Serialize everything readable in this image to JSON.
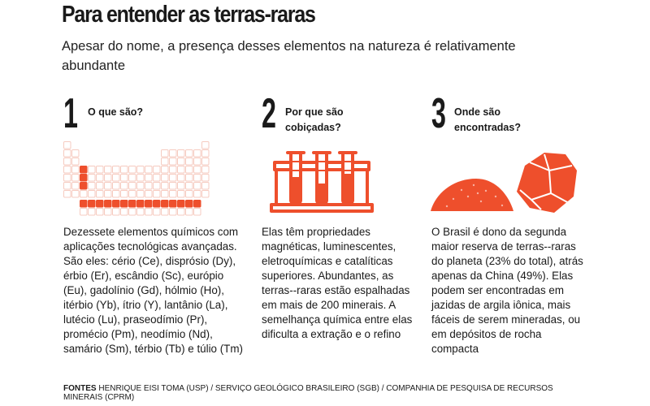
{
  "header": {
    "title": "Para entender as terras-raras",
    "subtitle": "Apesar do nome, a presença desses elementos na natureza é relativamente abundante"
  },
  "colors": {
    "accent": "#ee4f2c",
    "accent_light": "#f6cbc0",
    "text": "#1a1a1a"
  },
  "sections": [
    {
      "number": "1",
      "heading": "O que são?",
      "icon": "periodic-table-icon",
      "text": "Dezessete elementos químicos com aplicações tecnológicas avançadas. São eles: cério (Ce), disprósio (Dy), érbio (Er), escândio (Sc), európio (Eu), gadolínio (Gd), hólmio (Ho), itérbio (Yb), ítrio (Y), lantânio (La), lutécio (Lu), praseodímio (Pr), promécio (Pm), neodímio (Nd), samário (Sm), térbio (Tb) e túlio (Tm)"
    },
    {
      "number": "2",
      "heading": "Por que são cobiçadas?",
      "icon": "test-tubes-icon",
      "text": "Elas têm propriedades magnéticas, luminescentes, eletroquímicas e catalíticas superiores. Abundantes, as terras--raras estão espalhadas em mais de 200 minerais. A semelhança química entre elas dificulta a extração e o refino"
    },
    {
      "number": "3",
      "heading": "Onde são encontradas?",
      "icon": "clay-and-rock-icon",
      "text": "O Brasil é dono da segunda maior reserva de terras--raras do planeta (23% do total), atrás apenas da China (49%). Elas podem ser encontradas em jazidas de argila iônica, mais fáceis de serem mineradas, ou em depósitos de rocha compacta"
    }
  ],
  "source": {
    "label": "FONTES",
    "text": "HENRIQUE EISI TOMA (USP) / SERVIÇO GEOLÓGICO BRASILEIRO (SGB) / COMPANHIA DE PESQUISA DE RECURSOS MINERAIS (CPRM)"
  }
}
